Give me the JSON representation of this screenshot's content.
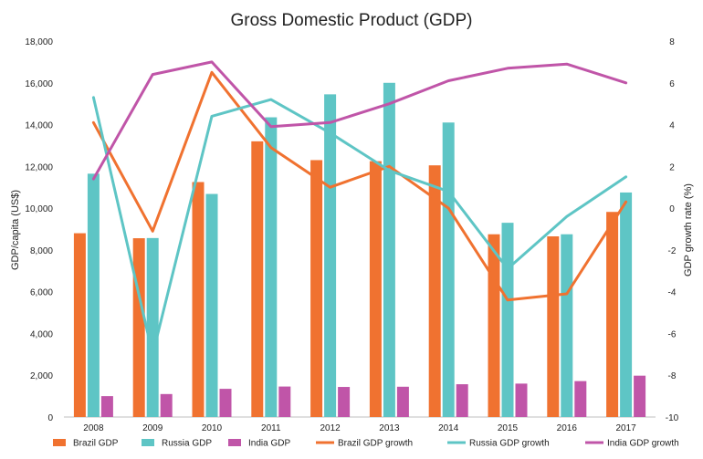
{
  "chart_data": {
    "type": "bar",
    "title": "Gross Domestic Product (GDP)",
    "categories": [
      "2008",
      "2009",
      "2010",
      "2011",
      "2012",
      "2013",
      "2014",
      "2015",
      "2016",
      "2017"
    ],
    "ylabel": "GDP/capita (US$)",
    "ylim": [
      0,
      18000
    ],
    "y_ticks": [
      "0",
      "2,000",
      "4,000",
      "6,000",
      "8,000",
      "10,000",
      "12,000",
      "14,000",
      "16,000",
      "18,000"
    ],
    "y2label": "GDP growth rate (%)",
    "y2lim": [
      -10,
      8
    ],
    "y2_ticks": [
      "-10",
      "-8",
      "-6",
      "-4",
      "-2",
      "0",
      "2",
      "4",
      "6",
      "8"
    ],
    "grid": false,
    "legend_position": "bottom",
    "series": [
      {
        "name": "Brazil GDP",
        "type": "bar",
        "axis": "left",
        "color": "#f07230",
        "values": [
          8800,
          8560,
          11250,
          13200,
          12300,
          12250,
          12050,
          8750,
          8650,
          9820
        ]
      },
      {
        "name": "Russia GDP",
        "type": "bar",
        "axis": "left",
        "color": "#5ec5c5",
        "values": [
          11650,
          8570,
          10680,
          14350,
          15450,
          16000,
          14100,
          9300,
          8750,
          10750
        ]
      },
      {
        "name": "India GDP",
        "type": "bar",
        "axis": "left",
        "color": "#c055a8",
        "values": [
          1000,
          1100,
          1350,
          1460,
          1440,
          1450,
          1570,
          1600,
          1720,
          1980
        ]
      },
      {
        "name": "Brazil GDP growth",
        "type": "line",
        "axis": "right",
        "color": "#f07230",
        "values": [
          4.1,
          -1.1,
          6.5,
          2.9,
          1.0,
          2.0,
          0.0,
          -4.4,
          -4.1,
          0.3
        ]
      },
      {
        "name": "Russia GDP growth",
        "type": "line",
        "axis": "right",
        "color": "#5ec5c5",
        "values": [
          5.3,
          -7.0,
          4.4,
          5.2,
          3.6,
          1.8,
          0.8,
          -2.9,
          -0.4,
          1.5
        ]
      },
      {
        "name": "India GDP growth",
        "type": "line",
        "axis": "right",
        "color": "#c055a8",
        "values": [
          1.4,
          6.4,
          7.0,
          3.9,
          4.1,
          5.0,
          6.1,
          6.7,
          6.9,
          6.0
        ]
      }
    ]
  }
}
